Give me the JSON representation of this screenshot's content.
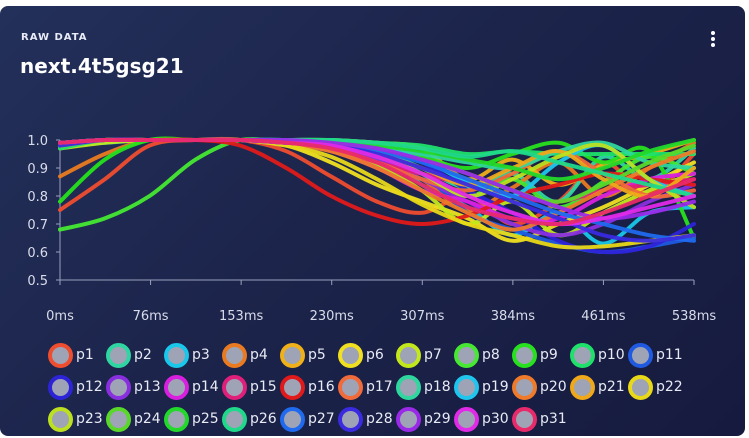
{
  "card": {
    "eyebrow": "RAW DATA",
    "title": "next.4t5gsg21",
    "menu_icon": "kebab-vertical-icon"
  },
  "chart_data": {
    "type": "line",
    "x_ticks": [
      "0ms",
      "76ms",
      "153ms",
      "230ms",
      "307ms",
      "384ms",
      "461ms",
      "538ms"
    ],
    "y_ticks": [
      "1.0",
      "0.9",
      "0.8",
      "0.7",
      "0.6",
      "0.5"
    ],
    "xlim": [
      0,
      538
    ],
    "ylim": [
      0.5,
      1.0
    ],
    "grid": false,
    "legend_position": "bottom",
    "x": [
      0,
      38,
      76,
      115,
      153,
      192,
      230,
      269,
      307,
      346,
      384,
      423,
      461,
      500,
      538
    ],
    "series": [
      {
        "name": "p1",
        "color": "#ef4d2f",
        "values": [
          0.75,
          0.86,
          0.98,
          1.0,
          1.0,
          0.96,
          0.87,
          0.78,
          0.74,
          0.8,
          0.7,
          0.78,
          0.92,
          0.81,
          0.95
        ]
      },
      {
        "name": "p2",
        "color": "#2fd6a1",
        "values": [
          0.99,
          1.0,
          1.0,
          1.0,
          1.0,
          0.99,
          0.98,
          0.96,
          0.9,
          0.83,
          0.88,
          0.78,
          0.94,
          0.86,
          0.97
        ]
      },
      {
        "name": "p3",
        "color": "#18c7ea",
        "values": [
          0.98,
          0.99,
          1.0,
          1.0,
          1.0,
          1.0,
          0.99,
          0.96,
          0.84,
          0.76,
          0.66,
          0.74,
          0.63,
          0.74,
          0.76
        ]
      },
      {
        "name": "p4",
        "color": "#ea7a20",
        "values": [
          0.87,
          0.95,
          1.0,
          1.0,
          1.0,
          0.99,
          0.96,
          0.92,
          0.86,
          0.75,
          0.83,
          0.92,
          0.8,
          0.9,
          0.99
        ]
      },
      {
        "name": "p5",
        "color": "#f0b018",
        "values": [
          0.99,
          1.0,
          1.0,
          1.0,
          1.0,
          1.0,
          1.0,
          0.99,
          0.97,
          0.86,
          0.93,
          0.84,
          0.91,
          0.95,
          1.0
        ]
      },
      {
        "name": "p6",
        "color": "#f0e020",
        "values": [
          0.98,
          1.0,
          1.0,
          1.0,
          1.0,
          0.98,
          0.92,
          0.84,
          0.78,
          0.72,
          0.64,
          0.7,
          0.76,
          0.84,
          0.92
        ]
      },
      {
        "name": "p7",
        "color": "#c2e81b",
        "values": [
          0.97,
          0.99,
          1.0,
          1.0,
          1.0,
          0.99,
          0.97,
          0.91,
          0.82,
          0.7,
          0.78,
          0.66,
          0.74,
          0.82,
          0.88
        ]
      },
      {
        "name": "p8",
        "color": "#46e832",
        "values": [
          0.68,
          0.72,
          0.8,
          0.93,
          1.0,
          0.99,
          0.97,
          0.93,
          0.88,
          0.8,
          0.86,
          0.76,
          0.85,
          0.94,
          0.88
        ]
      },
      {
        "name": "p9",
        "color": "#27e01e",
        "values": [
          0.78,
          0.93,
          1.0,
          1.0,
          1.0,
          1.0,
          0.99,
          0.97,
          0.94,
          0.9,
          0.95,
          0.99,
          0.92,
          0.96,
          0.65
        ]
      },
      {
        "name": "p10",
        "color": "#1fe06a",
        "values": [
          0.97,
          1.0,
          1.0,
          1.0,
          1.0,
          1.0,
          1.0,
          0.99,
          0.98,
          0.95,
          0.96,
          0.95,
          0.95,
          0.95,
          0.95
        ]
      },
      {
        "name": "p11",
        "color": "#1f5ae0",
        "values": [
          0.99,
          1.0,
          1.0,
          1.0,
          1.0,
          0.99,
          0.98,
          0.95,
          0.88,
          0.74,
          0.68,
          0.63,
          0.6,
          0.62,
          0.65
        ]
      },
      {
        "name": "p12",
        "color": "#2d24d8",
        "values": [
          0.99,
          1.0,
          1.0,
          1.0,
          1.0,
          1.0,
          0.99,
          0.97,
          0.92,
          0.82,
          0.74,
          0.64,
          0.6,
          0.62,
          0.7
        ]
      },
      {
        "name": "p13",
        "color": "#8a2fe0",
        "values": [
          0.98,
          1.0,
          1.0,
          1.0,
          1.0,
          0.99,
          0.97,
          0.93,
          0.86,
          0.78,
          0.7,
          0.66,
          0.7,
          0.78,
          0.84
        ]
      },
      {
        "name": "p14",
        "color": "#d81fe0",
        "values": [
          0.98,
          1.0,
          1.0,
          1.0,
          1.0,
          0.99,
          0.96,
          0.9,
          0.82,
          0.78,
          0.72,
          0.72,
          0.8,
          0.86,
          0.88
        ]
      },
      {
        "name": "p15",
        "color": "#e01f7a",
        "values": [
          0.99,
          1.0,
          1.0,
          1.0,
          1.0,
          0.99,
          0.97,
          0.92,
          0.88,
          0.84,
          0.8,
          0.78,
          0.82,
          0.84,
          0.86
        ]
      },
      {
        "name": "p16",
        "color": "#e01a1a",
        "values": [
          0.99,
          1.0,
          1.0,
          1.0,
          0.98,
          0.9,
          0.8,
          0.73,
          0.7,
          0.73,
          0.8,
          0.84,
          0.88,
          0.86,
          0.84
        ]
      },
      {
        "name": "p17",
        "color": "#f06a3a",
        "values": [
          0.98,
          1.0,
          1.0,
          1.0,
          1.0,
          0.99,
          0.97,
          0.92,
          0.86,
          0.82,
          0.88,
          0.96,
          0.88,
          0.8,
          0.82
        ]
      },
      {
        "name": "p18",
        "color": "#2fd69e",
        "values": [
          0.99,
          1.0,
          1.0,
          1.0,
          1.0,
          1.0,
          0.99,
          0.98,
          0.95,
          0.92,
          0.9,
          0.96,
          0.99,
          0.92,
          0.9
        ]
      },
      {
        "name": "p19",
        "color": "#1ec6ee",
        "values": [
          0.99,
          1.0,
          1.0,
          1.0,
          1.0,
          1.0,
          0.99,
          0.97,
          0.93,
          0.85,
          0.8,
          0.92,
          0.98,
          0.86,
          0.8
        ]
      },
      {
        "name": "p20",
        "color": "#ee7a2a",
        "values": [
          0.98,
          1.0,
          1.0,
          1.0,
          1.0,
          0.99,
          0.96,
          0.9,
          0.82,
          0.74,
          0.68,
          0.74,
          0.82,
          0.9,
          0.96
        ]
      },
      {
        "name": "p21",
        "color": "#eea81a",
        "values": [
          0.99,
          1.0,
          1.0,
          1.0,
          1.0,
          0.99,
          0.98,
          0.95,
          0.9,
          0.84,
          0.9,
          0.96,
          0.86,
          0.8,
          0.9
        ]
      },
      {
        "name": "p22",
        "color": "#e8d818",
        "values": [
          0.98,
          1.0,
          1.0,
          1.0,
          1.0,
          0.98,
          0.94,
          0.86,
          0.77,
          0.7,
          0.66,
          0.62,
          0.62,
          0.64,
          0.66
        ]
      },
      {
        "name": "p23",
        "color": "#bce020",
        "values": [
          0.99,
          1.0,
          1.0,
          1.0,
          1.0,
          0.99,
          0.98,
          0.95,
          0.88,
          0.8,
          0.86,
          0.94,
          0.98,
          0.86,
          0.76
        ]
      },
      {
        "name": "p24",
        "color": "#5ad82a",
        "values": [
          0.98,
          1.0,
          1.0,
          1.0,
          1.0,
          0.99,
          0.98,
          0.96,
          0.93,
          0.88,
          0.82,
          0.78,
          0.84,
          0.92,
          0.98
        ]
      },
      {
        "name": "p25",
        "color": "#22d82a",
        "values": [
          0.99,
          1.0,
          1.0,
          1.0,
          1.0,
          1.0,
          0.99,
          0.98,
          0.96,
          0.93,
          0.9,
          0.86,
          0.9,
          0.96,
          1.0
        ]
      },
      {
        "name": "p26",
        "color": "#20d88a",
        "values": [
          0.99,
          1.0,
          1.0,
          1.0,
          1.0,
          1.0,
          1.0,
          0.99,
          0.97,
          0.94,
          0.96,
          0.92,
          0.88,
          0.84,
          0.8
        ]
      },
      {
        "name": "p27",
        "color": "#1f6aee",
        "values": [
          0.99,
          1.0,
          1.0,
          1.0,
          1.0,
          0.99,
          0.98,
          0.96,
          0.92,
          0.86,
          0.8,
          0.74,
          0.7,
          0.66,
          0.64
        ]
      },
      {
        "name": "p28",
        "color": "#3a2ae0",
        "values": [
          0.98,
          1.0,
          1.0,
          1.0,
          1.0,
          0.99,
          0.98,
          0.95,
          0.9,
          0.84,
          0.78,
          0.72,
          0.66,
          0.64,
          0.66
        ]
      },
      {
        "name": "p29",
        "color": "#9a2ae8",
        "values": [
          0.99,
          1.0,
          1.0,
          1.0,
          1.0,
          1.0,
          0.99,
          0.97,
          0.93,
          0.88,
          0.82,
          0.76,
          0.72,
          0.74,
          0.78
        ]
      },
      {
        "name": "p30",
        "color": "#e02ae8",
        "values": [
          0.99,
          1.0,
          1.0,
          1.0,
          1.0,
          0.99,
          0.98,
          0.94,
          0.88,
          0.8,
          0.74,
          0.7,
          0.72,
          0.76,
          0.8
        ]
      },
      {
        "name": "p31",
        "color": "#e82a6a",
        "values": [
          0.99,
          1.0,
          1.0,
          1.0,
          1.0,
          0.99,
          0.97,
          0.92,
          0.84,
          0.76,
          0.72,
          0.7,
          0.74,
          0.8,
          0.86
        ]
      }
    ]
  }
}
